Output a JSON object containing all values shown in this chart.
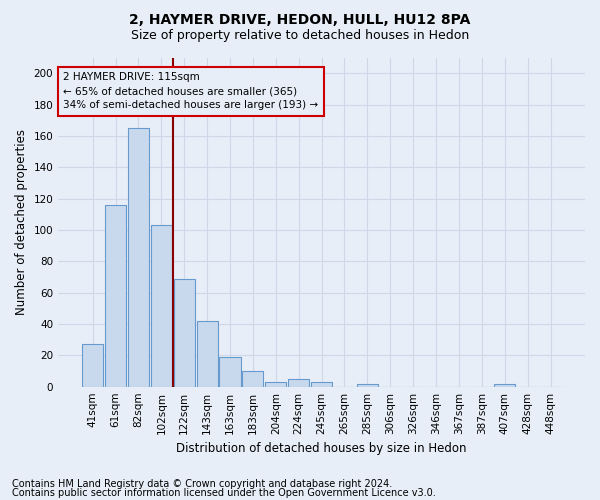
{
  "title": "2, HAYMER DRIVE, HEDON, HULL, HU12 8PA",
  "subtitle": "Size of property relative to detached houses in Hedon",
  "xlabel": "Distribution of detached houses by size in Hedon",
  "ylabel": "Number of detached properties",
  "categories": [
    "41sqm",
    "61sqm",
    "82sqm",
    "102sqm",
    "122sqm",
    "143sqm",
    "163sqm",
    "183sqm",
    "204sqm",
    "224sqm",
    "245sqm",
    "265sqm",
    "285sqm",
    "306sqm",
    "326sqm",
    "346sqm",
    "367sqm",
    "387sqm",
    "407sqm",
    "428sqm",
    "448sqm"
  ],
  "values": [
    27,
    116,
    165,
    103,
    69,
    42,
    19,
    10,
    3,
    5,
    3,
    0,
    2,
    0,
    0,
    0,
    0,
    0,
    2,
    0,
    0
  ],
  "bar_color": "#c8d9ee",
  "bar_edge_color": "#6699cc",
  "vline_x_index": 3.5,
  "vline_color": "#8b0000",
  "annotation_lines": [
    "2 HAYMER DRIVE: 115sqm",
    "← 65% of detached houses are smaller (365)",
    "34% of semi-detached houses are larger (193) →"
  ],
  "annotation_box_color": "#cc0000",
  "ylim": [
    0,
    210
  ],
  "yticks": [
    0,
    20,
    40,
    60,
    80,
    100,
    120,
    140,
    160,
    180,
    200
  ],
  "footer_line1": "Contains HM Land Registry data © Crown copyright and database right 2024.",
  "footer_line2": "Contains public sector information licensed under the Open Government Licence v3.0.",
  "bg_color": "#e8eef8",
  "grid_color": "#d0d8e8",
  "title_fontsize": 10,
  "subtitle_fontsize": 9,
  "axis_label_fontsize": 8.5,
  "tick_fontsize": 7.5,
  "footer_fontsize": 7
}
